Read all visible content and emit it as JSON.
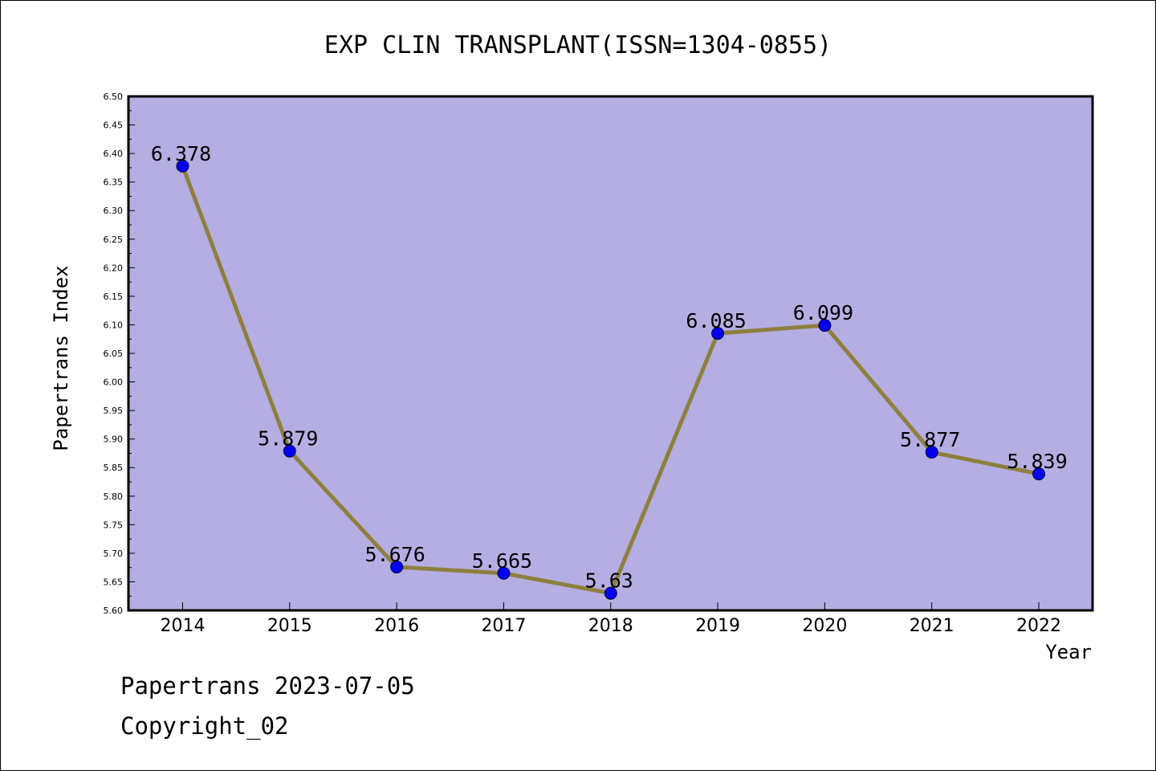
{
  "chart_data": {
    "type": "line",
    "title": "EXP CLIN TRANSPLANT(ISSN=1304-0855)",
    "xlabel": "Year",
    "ylabel": "Papertrans Index",
    "categories": [
      "2014",
      "2015",
      "2016",
      "2017",
      "2018",
      "2019",
      "2020",
      "2021",
      "2022"
    ],
    "series": [
      {
        "values": [
          6.378,
          5.879,
          5.676,
          5.665,
          5.63,
          6.085,
          6.099,
          5.877,
          5.839
        ]
      }
    ],
    "data_labels": [
      "6.378",
      "5.879",
      "5.676",
      "5.665",
      "5.63",
      "6.085",
      "6.099",
      "5.877",
      "5.839"
    ],
    "ylim": [
      5.6,
      6.5
    ],
    "yticks": [
      "5.60",
      "5.65",
      "5.70",
      "5.75",
      "5.80",
      "5.85",
      "5.90",
      "5.95",
      "6.00",
      "6.05",
      "6.10",
      "6.15",
      "6.20",
      "6.25",
      "6.30",
      "6.35",
      "6.40",
      "6.45",
      "6.50"
    ],
    "grid": false,
    "legend": "none",
    "colors": {
      "plot_background": "#b5aee2",
      "line": "#8f7f3f",
      "marker": "#0000ee"
    }
  },
  "footer": {
    "line1": "Papertrans 2023-07-05",
    "line2": "Copyright_02"
  }
}
